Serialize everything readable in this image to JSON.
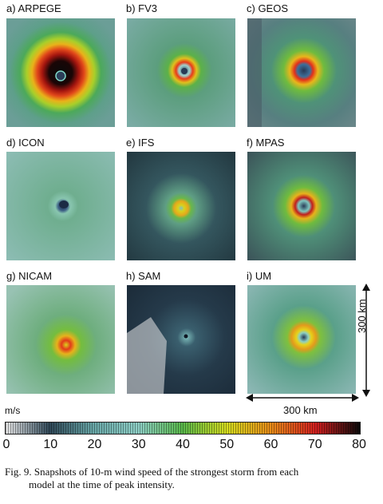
{
  "panels": [
    {
      "label": "a) ARPEGE",
      "peak_color": "#111111"
    },
    {
      "label": "b) FV3",
      "peak_color": "#e83a1a"
    },
    {
      "label": "c) GEOS",
      "peak_color": "#e3301c"
    },
    {
      "label": "d) ICON",
      "peak_color": "#3d7a9a"
    },
    {
      "label": "e) IFS",
      "peak_color": "#d8d21c"
    },
    {
      "label": "f) MPAS",
      "peak_color": "#c01e1e"
    },
    {
      "label": "g) NICAM",
      "peak_color": "#e23a1a"
    },
    {
      "label": "h) SAM",
      "peak_color": "#7fbfbd"
    },
    {
      "label": "i)   UM",
      "peak_color": "#e6d21a"
    }
  ],
  "scale": {
    "vertical_label": "300 km",
    "horizontal_label": "300 km"
  },
  "colorbar": {
    "unit": "m/s",
    "ticks": [
      "0",
      "10",
      "20",
      "30",
      "40",
      "50",
      "60",
      "70",
      "80"
    ],
    "colors": [
      "#e9e9e9",
      "#2f4858",
      "#6aa9a9",
      "#8fd0c7",
      "#59b94a",
      "#d6dd1e",
      "#e98b18",
      "#d21f1f",
      "#0a0a0a"
    ]
  },
  "caption": {
    "line1": "Fig. 9.  Snapshots of 10-m wind speed of the strongest storm from each",
    "line2": "model at the time of peak intensity."
  }
}
